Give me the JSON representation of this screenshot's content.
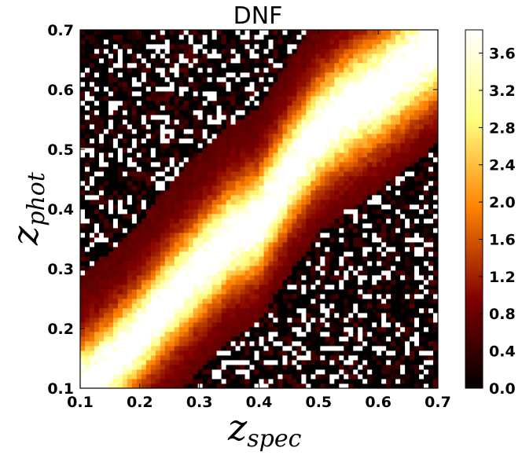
{
  "chart_data": {
    "type": "heatmap",
    "title": "DNF",
    "xlabel": {
      "base": "z",
      "sub": "spec"
    },
    "ylabel": {
      "base": "z",
      "sub": "phot"
    },
    "xlim": [
      0.1,
      0.7
    ],
    "ylim": [
      0.1,
      0.7
    ],
    "xticks": [
      "0.1",
      "0.2",
      "0.3",
      "0.4",
      "0.5",
      "0.6",
      "0.7"
    ],
    "yticks": [
      "0.1",
      "0.2",
      "0.3",
      "0.4",
      "0.5",
      "0.6",
      "0.7"
    ],
    "colorbar": {
      "range": [
        0.0,
        3.85
      ],
      "ticks": [
        "0.0",
        "0.4",
        "0.8",
        "1.2",
        "1.6",
        "2.0",
        "2.4",
        "2.8",
        "3.2",
        "3.6"
      ],
      "colormap": "afmhot",
      "stops": [
        "#000000",
        "#800000",
        "#ff8000",
        "#ffff80",
        "#ffffff"
      ]
    },
    "ridge": {
      "description_values": "peak z_phot along z_spec",
      "z_spec": [
        0.1,
        0.15,
        0.2,
        0.25,
        0.3,
        0.35,
        0.4,
        0.45,
        0.5,
        0.55,
        0.6,
        0.65,
        0.7
      ],
      "z_phot": [
        0.1,
        0.14,
        0.19,
        0.25,
        0.3,
        0.35,
        0.38,
        0.46,
        0.53,
        0.57,
        0.6,
        0.64,
        0.68
      ]
    },
    "grid": false
  }
}
